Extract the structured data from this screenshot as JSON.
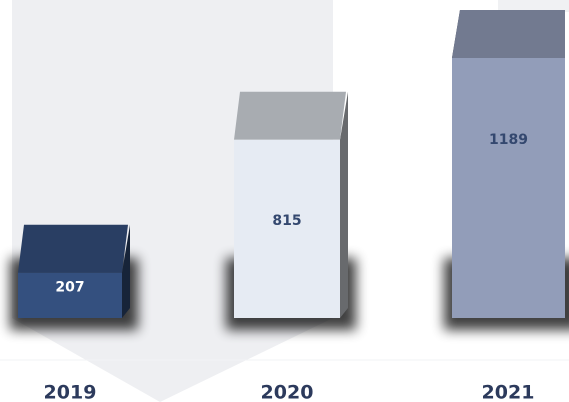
{
  "chart_data": {
    "type": "bar3d",
    "categories": [
      "2019",
      "2020",
      "2021"
    ],
    "values": [
      207,
      815,
      1189
    ],
    "colors": [
      "#34507f",
      "#e6ebf3",
      "#929db9"
    ]
  }
}
